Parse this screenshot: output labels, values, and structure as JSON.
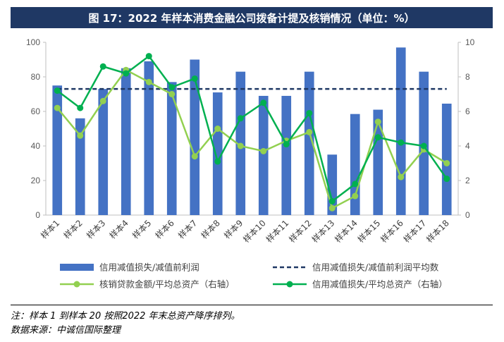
{
  "title": "图 17：2022 年样本消费金融公司拨备计提及核销情况（单位：%）",
  "notes": {
    "note": "注：样本 1 到样本 20 按照2022 年末总资产降序排列。",
    "source": "数据来源：中诚信国际整理"
  },
  "colors": {
    "bar": "#4472c4",
    "dashed": "#1f3864",
    "light_green": "#92d050",
    "dark_green": "#00b050",
    "title_bg": "#1f3864"
  },
  "chart_data": {
    "type": "bar",
    "categories": [
      "样本1",
      "样本2",
      "样本3",
      "样本4",
      "样本5",
      "样本6",
      "样本7",
      "样本8",
      "样本9",
      "样本10",
      "样本11",
      "样本12",
      "样本13",
      "样本14",
      "样本15",
      "样本16",
      "样本17",
      "样本18"
    ],
    "left_axis": {
      "ylim": [
        0,
        100
      ],
      "ticks": [
        0,
        20,
        40,
        60,
        80,
        100
      ]
    },
    "right_axis": {
      "ylim": [
        0,
        10
      ],
      "ticks": [
        0,
        2,
        4,
        6,
        8,
        10
      ]
    },
    "grid": false,
    "legend_position": "bottom",
    "series": [
      {
        "name": "信用减值损失/减值前利润",
        "type": "bar",
        "axis": "left",
        "values": [
          75,
          56,
          73,
          85,
          89,
          77,
          90,
          71,
          83,
          69,
          69,
          83,
          35,
          58.5,
          61,
          97,
          83,
          64.5
        ]
      },
      {
        "name": "信用减值损失/减值前利润平均数",
        "type": "line-dashed",
        "axis": "left",
        "values": [
          73,
          73,
          73,
          73,
          73,
          73,
          73,
          73,
          73,
          73,
          73,
          73,
          73,
          73,
          73,
          73,
          73,
          73
        ]
      },
      {
        "name": "核销贷款金额/平均总资产（右轴）",
        "type": "line",
        "axis": "right",
        "values": [
          6.2,
          4.6,
          6.6,
          8.4,
          7.7,
          7.0,
          3.4,
          5.0,
          4.0,
          3.7,
          4.3,
          4.8,
          0.4,
          1.1,
          5.4,
          2.2,
          3.8,
          3.0
        ]
      },
      {
        "name": "信用减值损失/平均总资产（右轴）",
        "type": "line",
        "axis": "right",
        "values": [
          7.2,
          6.2,
          8.6,
          8.2,
          9.2,
          7.4,
          7.9,
          3.1,
          5.6,
          6.5,
          4.1,
          5.9,
          0.8,
          1.8,
          4.5,
          4.2,
          4.0,
          2.1
        ]
      }
    ]
  }
}
